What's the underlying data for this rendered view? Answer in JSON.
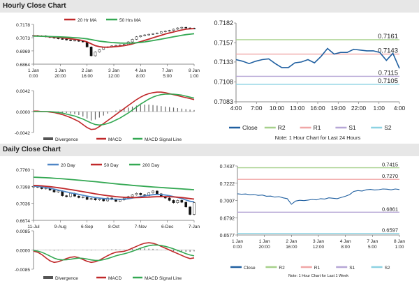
{
  "sections": {
    "hourly_title": "Hourly Close Chart",
    "daily_title": "Daily Close Chart"
  },
  "chart_data": [
    {
      "id": "hourly_price",
      "type": "line",
      "legend": [
        "20 Hr MA",
        "50 Hrs MA"
      ],
      "legend_colors": [
        "#c0282a",
        "#34a853"
      ],
      "ylim": [
        0.6864,
        0.7178
      ],
      "yticks": [
        "0.7178",
        "0.7073",
        "0.6969",
        "0.6864"
      ],
      "xticks": [
        [
          "1 Jan",
          "0:00"
        ],
        [
          "1 Jan",
          "20:00"
        ],
        [
          "2 Jan",
          "16:00"
        ],
        [
          "3 Jan",
          "12:00"
        ],
        [
          "4 Jan",
          "8:00"
        ],
        [
          "7 Jan",
          "5:00"
        ],
        [
          "8 Jan",
          "1:00"
        ]
      ],
      "n": 40,
      "ohlc_close": [
        0.709,
        0.7085,
        0.7088,
        0.708,
        0.7075,
        0.707,
        0.7065,
        0.7062,
        0.7055,
        0.705,
        0.7052,
        0.7045,
        0.704,
        0.7,
        0.693,
        0.696,
        0.698,
        0.6995,
        0.7,
        0.7008,
        0.7012,
        0.7015,
        0.702,
        0.704,
        0.706,
        0.708,
        0.709,
        0.7095,
        0.71,
        0.7105,
        0.711,
        0.712,
        0.7125,
        0.713,
        0.714,
        0.715,
        0.7155,
        0.715,
        0.7148,
        0.7145
      ],
      "series": [
        {
          "name": "20 Hr MA",
          "values": [
            0.7088,
            0.7087,
            0.7085,
            0.7083,
            0.708,
            0.7078,
            0.7075,
            0.7072,
            0.7068,
            0.7064,
            0.706,
            0.7056,
            0.705,
            0.704,
            0.7025,
            0.701,
            0.7002,
            0.6998,
            0.6998,
            0.7,
            0.7003,
            0.7006,
            0.701,
            0.7016,
            0.7024,
            0.7033,
            0.7042,
            0.7052,
            0.7062,
            0.7072,
            0.7082,
            0.7092,
            0.7102,
            0.711,
            0.7118,
            0.7126,
            0.7134,
            0.714,
            0.7143,
            0.7145
          ]
        },
        {
          "name": "50 Hrs MA",
          "values": [
            0.7085,
            0.7085,
            0.7084,
            0.7083,
            0.7082,
            0.7081,
            0.708,
            0.7079,
            0.7077,
            0.7075,
            0.7073,
            0.7071,
            0.7068,
            0.7064,
            0.7058,
            0.7052,
            0.7046,
            0.7042,
            0.7038,
            0.7035,
            0.7033,
            0.7031,
            0.703,
            0.703,
            0.7031,
            0.7033,
            0.7036,
            0.704,
            0.7045,
            0.705,
            0.7056,
            0.7062,
            0.7068,
            0.7074,
            0.708,
            0.7086,
            0.7092,
            0.7097,
            0.7101,
            0.7105
          ]
        }
      ]
    },
    {
      "id": "hourly_macd",
      "type": "line",
      "ylim": [
        -0.0042,
        0.0042
      ],
      "yticks": [
        "0.0042",
        "0.0000",
        "-0.0042"
      ],
      "legend": [
        "Divergence",
        "MACD",
        "MACD Signal Line"
      ],
      "legend_colors": [
        "#555555",
        "#c0282a",
        "#34a853"
      ],
      "divergence": [
        0.0001,
        0.0001,
        0.0001,
        0.0,
        0.0,
        -0.0001,
        -0.0001,
        -0.0002,
        -0.0003,
        -0.0004,
        -0.0005,
        -0.0007,
        -0.001,
        -0.0014,
        -0.0018,
        -0.0016,
        -0.0012,
        -0.0008,
        -0.0004,
        -0.0001,
        0.0002,
        0.0004,
        0.0006,
        0.0008,
        0.001,
        0.0012,
        0.0013,
        0.0014,
        0.0014,
        0.0013,
        0.0012,
        0.0011,
        0.001,
        0.0009,
        0.0008,
        0.0007,
        0.0006,
        0.0005,
        0.0004,
        0.0003
      ],
      "series": [
        {
          "name": "MACD",
          "values": [
            0.0001,
            0.0001,
            0.0,
            0.0,
            -0.0001,
            -0.0002,
            -0.0004,
            -0.0006,
            -0.0009,
            -0.0012,
            -0.0016,
            -0.002,
            -0.0026,
            -0.0032,
            -0.0036,
            -0.0035,
            -0.003,
            -0.0024,
            -0.0018,
            -0.0012,
            -0.0006,
            0.0,
            0.0006,
            0.0012,
            0.0018,
            0.0024,
            0.0029,
            0.0033,
            0.0036,
            0.0038,
            0.0039,
            0.0039,
            0.0038,
            0.0036,
            0.0034,
            0.0032,
            0.003,
            0.0028,
            0.0026,
            0.0024
          ]
        },
        {
          "name": "MACD Signal Line",
          "values": [
            0.0,
            0.0,
            0.0,
            0.0,
            0.0,
            -0.0001,
            -0.0002,
            -0.0003,
            -0.0005,
            -0.0007,
            -0.0009,
            -0.0012,
            -0.0015,
            -0.0019,
            -0.0023,
            -0.0026,
            -0.0027,
            -0.0026,
            -0.0024,
            -0.0021,
            -0.0017,
            -0.0013,
            -0.0008,
            -0.0003,
            0.0003,
            0.0009,
            0.0015,
            0.002,
            0.0025,
            0.0029,
            0.0032,
            0.0034,
            0.0035,
            0.0035,
            0.0035,
            0.0034,
            0.0033,
            0.0031,
            0.0029,
            0.0027
          ]
        }
      ]
    },
    {
      "id": "hourly_pivots",
      "type": "line",
      "ylim": [
        0.7083,
        0.7182
      ],
      "yticks": [
        "0.7182",
        "0.7157",
        "0.7133",
        "0.7108",
        "0.7083"
      ],
      "xticks": [
        "4:00",
        "7:00",
        "10:00",
        "13:00",
        "16:00",
        "19:00",
        "22:00",
        "1:00",
        "4:00"
      ],
      "levels": [
        {
          "name": "R2",
          "value": 0.7161,
          "label": "0.7161",
          "color": "#a6d08a"
        },
        {
          "name": "R1",
          "value": 0.7143,
          "label": "0.7143",
          "color": "#f0a6a6"
        },
        {
          "name": "S1",
          "value": 0.7115,
          "label": "0.7115",
          "color": "#b6a6d6"
        },
        {
          "name": "S2",
          "value": 0.7105,
          "label": "0.7105",
          "color": "#8cd2e2"
        }
      ],
      "close": [
        0.7136,
        0.7134,
        0.7131,
        0.7134,
        0.7136,
        0.7137,
        0.7131,
        0.7126,
        0.7126,
        0.7132,
        0.7133,
        0.7136,
        0.7132,
        0.714,
        0.715,
        0.7143,
        0.7145,
        0.7145,
        0.7149,
        0.7148,
        0.7147,
        0.7147,
        0.7145,
        0.7135,
        0.7144,
        0.7125
      ],
      "legend": [
        "Close",
        "R2",
        "R1",
        "S1",
        "S2"
      ],
      "legend_colors": [
        "#1f5fa0",
        "#a6d08a",
        "#f0a6a6",
        "#b6a6d6",
        "#8cd2e2"
      ],
      "note": "Note: 1 Hour Chart for Last 24 Hours"
    },
    {
      "id": "daily_price",
      "type": "line",
      "legend": [
        "20 Day",
        "50 Day",
        "200 Day"
      ],
      "legend_colors": [
        "#4f86c6",
        "#c0282a",
        "#34a853"
      ],
      "ylim": [
        0.6674,
        0.776
      ],
      "yticks": [
        "0.7760",
        "0.7398",
        "0.7036",
        "0.6674"
      ],
      "xticks": [
        "11-Jul",
        "9-Aug",
        "6-Sep",
        "8-Oct",
        "7-Nov",
        "6-Dec",
        "7-Jan"
      ],
      "n": 40,
      "ohlc_close": [
        0.74,
        0.738,
        0.735,
        0.736,
        0.732,
        0.728,
        0.73,
        0.72,
        0.718,
        0.725,
        0.719,
        0.716,
        0.717,
        0.712,
        0.714,
        0.711,
        0.713,
        0.709,
        0.715,
        0.712,
        0.708,
        0.711,
        0.715,
        0.718,
        0.722,
        0.725,
        0.722,
        0.72,
        0.726,
        0.73,
        0.724,
        0.718,
        0.715,
        0.71,
        0.705,
        0.71,
        0.706,
        0.696,
        0.68,
        0.705
      ],
      "series": [
        {
          "name": "20 Day",
          "values": [
            0.7405,
            0.7398,
            0.7388,
            0.7375,
            0.736,
            0.734,
            0.732,
            0.73,
            0.728,
            0.7262,
            0.7245,
            0.7228,
            0.721,
            0.7192,
            0.7175,
            0.716,
            0.715,
            0.714,
            0.7132,
            0.7128,
            0.7125,
            0.7122,
            0.7125,
            0.7135,
            0.715,
            0.7165,
            0.718,
            0.7195,
            0.721,
            0.7222,
            0.7228,
            0.7225,
            0.7215,
            0.72,
            0.718,
            0.716,
            0.714,
            0.711,
            0.708,
            0.707
          ]
        },
        {
          "name": "50 Day",
          "values": [
            0.742,
            0.7416,
            0.741,
            0.7402,
            0.7393,
            0.7382,
            0.737,
            0.7358,
            0.7344,
            0.733,
            0.7316,
            0.73,
            0.7285,
            0.727,
            0.7255,
            0.724,
            0.7226,
            0.7212,
            0.72,
            0.719,
            0.718,
            0.7172,
            0.7166,
            0.7162,
            0.716,
            0.716,
            0.7162,
            0.7166,
            0.717,
            0.7175,
            0.7178,
            0.718,
            0.718,
            0.7178,
            0.7174,
            0.7168,
            0.716,
            0.715,
            0.7138,
            0.7128
          ]
        },
        {
          "name": "200 Day",
          "values": [
            0.7595,
            0.7592,
            0.7588,
            0.7583,
            0.7578,
            0.7572,
            0.7566,
            0.756,
            0.7553,
            0.7546,
            0.7539,
            0.7531,
            0.7523,
            0.7515,
            0.7507,
            0.7499,
            0.749,
            0.7481,
            0.7472,
            0.7463,
            0.7454,
            0.7445,
            0.7437,
            0.7429,
            0.7421,
            0.7414,
            0.7407,
            0.74,
            0.7393,
            0.7387,
            0.7381,
            0.7375,
            0.7369,
            0.7363,
            0.7357,
            0.7351,
            0.7345,
            0.7339,
            0.7333,
            0.7327
          ]
        }
      ]
    },
    {
      "id": "daily_macd",
      "type": "line",
      "ylim": [
        -0.0085,
        0.0085
      ],
      "yticks": [
        "0.0085",
        "0.0000",
        "-0.0085"
      ],
      "legend": [
        "Divergence",
        "MACD",
        "MACD Signal Line"
      ],
      "legend_colors": [
        "#555555",
        "#c0282a",
        "#34a853"
      ],
      "divergence": [
        0.0002,
        0.0001,
        0.0,
        -0.0001,
        -0.0002,
        -0.0003,
        -0.0002,
        -0.0001,
        0.0,
        0.0001,
        0.0001,
        0.0,
        -0.0001,
        -0.0002,
        -0.0002,
        -0.0001,
        0.0,
        0.0001,
        0.0002,
        0.0003,
        0.0003,
        0.0002,
        0.0002,
        0.0003,
        0.0004,
        0.0005,
        0.0006,
        0.0007,
        0.0006,
        0.0005,
        0.0003,
        0.0001,
        -0.0001,
        -0.0003,
        -0.0005,
        -0.0006,
        -0.0007,
        -0.0008,
        -0.0008,
        -0.0006
      ],
      "series": [
        {
          "name": "MACD",
          "values": [
            -0.0005,
            -0.001,
            -0.002,
            -0.0035,
            -0.0048,
            -0.0055,
            -0.0052,
            -0.0045,
            -0.0038,
            -0.0032,
            -0.003,
            -0.0034,
            -0.0042,
            -0.005,
            -0.0055,
            -0.0052,
            -0.0045,
            -0.0035,
            -0.0025,
            -0.0016,
            -0.001,
            -0.0008,
            -0.0006,
            0.0,
            0.0008,
            0.0016,
            0.0024,
            0.003,
            0.0032,
            0.003,
            0.0024,
            0.0016,
            0.0008,
            0.0,
            -0.0008,
            -0.0016,
            -0.0024,
            -0.0032,
            -0.0038,
            -0.0035
          ]
        },
        {
          "name": "MACD Signal Line",
          "values": [
            -0.0002,
            -0.0005,
            -0.001,
            -0.0018,
            -0.0027,
            -0.0036,
            -0.0042,
            -0.0044,
            -0.0043,
            -0.0041,
            -0.0038,
            -0.0036,
            -0.0037,
            -0.004,
            -0.0044,
            -0.0046,
            -0.0046,
            -0.0043,
            -0.0038,
            -0.0032,
            -0.0026,
            -0.0021,
            -0.0017,
            -0.0012,
            -0.0006,
            0.0001,
            0.0008,
            0.0014,
            0.0019,
            0.0022,
            0.0022,
            0.002,
            0.0016,
            0.0011,
            0.0005,
            -0.0002,
            -0.0009,
            -0.0016,
            -0.0022,
            -0.0026
          ]
        }
      ]
    },
    {
      "id": "daily_pivots",
      "type": "line",
      "ylim": [
        0.6577,
        0.7437
      ],
      "yticks": [
        "0.7437",
        "0.7222",
        "0.7007",
        "0.6792",
        "0.6577"
      ],
      "xticks": [
        [
          "1 Jan",
          "0:00"
        ],
        [
          "1 Jan",
          "20:00"
        ],
        [
          "2 Jan",
          "16:00"
        ],
        [
          "3 Jan",
          "12:00"
        ],
        [
          "4 Jan",
          "8:00"
        ],
        [
          "7 Jan",
          "5:00"
        ],
        [
          "8 Jan",
          "1:00"
        ]
      ],
      "levels": [
        {
          "name": "R2",
          "value": 0.7415,
          "label": "0.7415",
          "color": "#a6d08a"
        },
        {
          "name": "R1",
          "value": 0.727,
          "label": "0.7270",
          "color": "#f0a6a6"
        },
        {
          "name": "S1",
          "value": 0.6861,
          "label": "0.6861",
          "color": "#b6a6d6"
        },
        {
          "name": "S2",
          "value": 0.6597,
          "label": "0.6597",
          "color": "#8cd2e2"
        }
      ],
      "close": [
        0.709,
        0.7085,
        0.7088,
        0.7078,
        0.7082,
        0.707,
        0.7075,
        0.706,
        0.7062,
        0.705,
        0.7055,
        0.704,
        0.703,
        0.696,
        0.7,
        0.701,
        0.7005,
        0.7012,
        0.702,
        0.7015,
        0.703,
        0.7025,
        0.704,
        0.7035,
        0.703,
        0.7045,
        0.706,
        0.708,
        0.712,
        0.713,
        0.7125,
        0.714,
        0.7145,
        0.7138,
        0.7142,
        0.715,
        0.7148,
        0.714,
        0.715,
        0.7143
      ],
      "legend": [
        "Close",
        "R2",
        "R1",
        "S1",
        "S2"
      ],
      "legend_colors": [
        "#1f5fa0",
        "#a6d08a",
        "#f0a6a6",
        "#b6a6d6",
        "#8cd2e2"
      ],
      "note": "Note: 1 Hour Chart for Last 1 Week"
    }
  ]
}
